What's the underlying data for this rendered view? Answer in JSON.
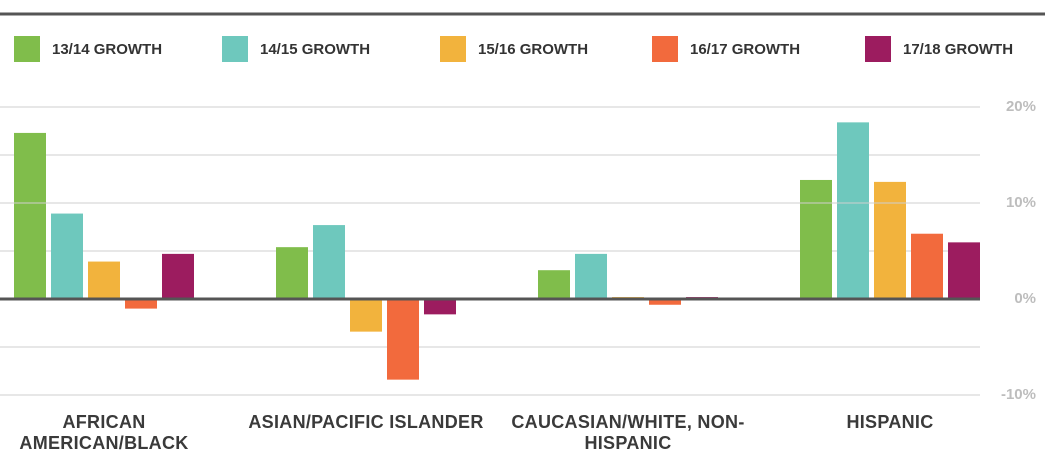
{
  "chart_data": {
    "type": "bar",
    "categories": [
      "AFRICAN AMERICAN/BLACK",
      "ASIAN/PACIFIC ISLANDER",
      "CAUCASIAN/WHITE, NON-HISPANIC",
      "HISPANIC"
    ],
    "series": [
      {
        "name": "13/14 GROWTH",
        "color": "#80bd4b",
        "values": [
          17.3,
          5.4,
          3.0,
          12.4
        ]
      },
      {
        "name": "14/15 GROWTH",
        "color": "#6ec8bd",
        "values": [
          8.9,
          7.7,
          4.7,
          18.4
        ]
      },
      {
        "name": "15/16 GROWTH",
        "color": "#f2b33d",
        "values": [
          3.9,
          -3.4,
          0.2,
          12.2
        ]
      },
      {
        "name": "16/17 GROWTH",
        "color": "#f26a3d",
        "values": [
          -1.0,
          -8.4,
          -0.6,
          6.8
        ]
      },
      {
        "name": "17/18 GROWTH",
        "color": "#9c1c5f",
        "values": [
          4.7,
          -1.6,
          0.2,
          5.9
        ]
      }
    ],
    "ylim": [
      -10,
      20
    ],
    "yticks": [
      {
        "value": 20,
        "label": "20%"
      },
      {
        "value": 10,
        "label": "10%"
      },
      {
        "value": 0,
        "label": "0%"
      },
      {
        "value": -10,
        "label": "-10%"
      }
    ],
    "minor_yticks": [
      15,
      5,
      -5
    ],
    "grid": true,
    "legend": "top"
  }
}
